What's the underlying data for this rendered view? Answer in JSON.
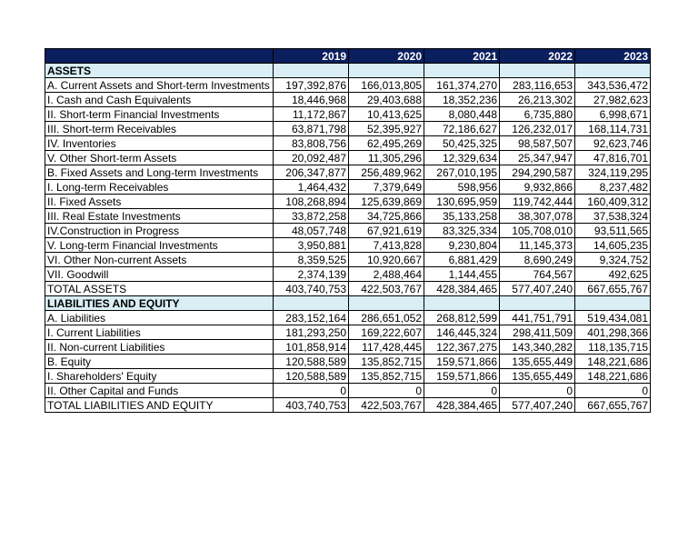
{
  "table": {
    "header": [
      "2019",
      "2020",
      "2021",
      "2022",
      "2023"
    ],
    "rows": [
      [
        "ASSETS"
      ],
      [
        "A. Current Assets and Short-term Investments",
        "197,392,876",
        "166,013,805",
        "161,374,270",
        "283,116,653",
        "343,536,472"
      ],
      [
        "I. Cash and Cash Equivalents",
        "18,446,968",
        "29,403,688",
        "18,352,236",
        "26,213,302",
        "27,982,623"
      ],
      [
        "II. Short-term Financial Investments",
        "11,172,867",
        "10,413,625",
        "8,080,448",
        "6,735,880",
        "6,998,671"
      ],
      [
        "III. Short-term Receivables",
        "63,871,798",
        "52,395,927",
        "72,186,627",
        "126,232,017",
        "168,114,731"
      ],
      [
        "IV. Inventories",
        "83,808,756",
        "62,495,269",
        "50,425,325",
        "98,587,507",
        "92,623,746"
      ],
      [
        "V. Other Short-term Assets",
        "20,092,487",
        "11,305,296",
        "12,329,634",
        "25,347,947",
        "47,816,701"
      ],
      [
        "B. Fixed Assets and Long-term Investments",
        "206,347,877",
        "256,489,962",
        "267,010,195",
        "294,290,587",
        "324,119,295"
      ],
      [
        "I. Long-term Receivables",
        "1,464,432",
        "7,379,649",
        "598,956",
        "9,932,866",
        "8,237,482"
      ],
      [
        "II. Fixed Assets",
        "108,268,894",
        "125,639,869",
        "130,695,959",
        "119,742,444",
        "160,409,312"
      ],
      [
        "III. Real Estate Investments",
        "33,872,258",
        "34,725,866",
        "35,133,258",
        "38,307,078",
        "37,538,324"
      ],
      [
        "IV.Construction in Progress",
        "48,057,748",
        "67,921,619",
        "83,325,334",
        "105,708,010",
        "93,511,565"
      ],
      [
        "V. Long-term Financial Investments",
        "3,950,881",
        "7,413,828",
        "9,230,804",
        "11,145,373",
        "14,605,235"
      ],
      [
        "VI. Other Non-current Assets",
        "8,359,525",
        "10,920,667",
        "6,881,429",
        "8,690,249",
        "9,324,752"
      ],
      [
        "VII. Goodwill",
        "2,374,139",
        "2,488,464",
        "1,144,455",
        "764,567",
        "492,625"
      ],
      [
        "TOTAL ASSETS",
        "403,740,753",
        "422,503,767",
        "428,384,465",
        "577,407,240",
        "667,655,767"
      ],
      [
        "LIABILITIES AND EQUITY"
      ],
      [
        "A. Liabilities",
        "283,152,164",
        "286,651,052",
        "268,812,599",
        "441,751,791",
        "519,434,081"
      ],
      [
        "I.  Current Liabilities",
        "181,293,250",
        "169,222,607",
        "146,445,324",
        "298,411,509",
        "401,298,366"
      ],
      [
        "II. Non-current Liabilities",
        "101,858,914",
        "117,428,445",
        "122,367,275",
        "143,340,282",
        "118,135,715"
      ],
      [
        "B. Equity",
        "120,588,589",
        "135,852,715",
        "159,571,866",
        "135,655,449",
        "148,221,686"
      ],
      [
        "I. Shareholders' Equity",
        "120,588,589",
        "135,852,715",
        "159,571,866",
        "135,655,449",
        "148,221,686"
      ],
      [
        "II. Other Capital and Funds",
        "0",
        "0",
        "0",
        "0",
        "0"
      ],
      [
        "TOTAL LIABILITIES AND EQUITY",
        "403,740,753",
        "422,503,767",
        "428,384,465",
        "577,407,240",
        "667,655,767"
      ]
    ]
  }
}
